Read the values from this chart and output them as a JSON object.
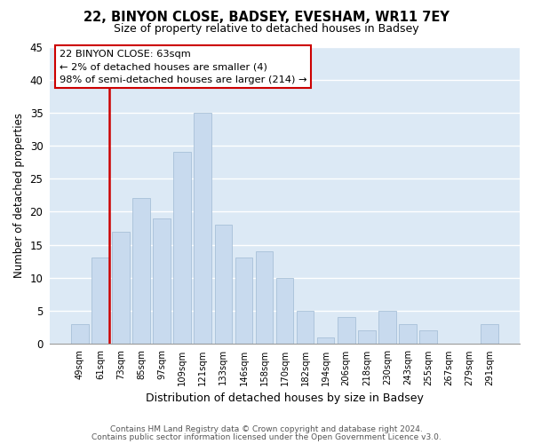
{
  "title": "22, BINYON CLOSE, BADSEY, EVESHAM, WR11 7EY",
  "subtitle": "Size of property relative to detached houses in Badsey",
  "xlabel": "Distribution of detached houses by size in Badsey",
  "ylabel": "Number of detached properties",
  "bar_color": "#c8daee",
  "bar_edge_color": "#a8c0d8",
  "vline_color": "#cc0000",
  "categories": [
    "49sqm",
    "61sqm",
    "73sqm",
    "85sqm",
    "97sqm",
    "109sqm",
    "121sqm",
    "133sqm",
    "146sqm",
    "158sqm",
    "170sqm",
    "182sqm",
    "194sqm",
    "206sqm",
    "218sqm",
    "230sqm",
    "243sqm",
    "255sqm",
    "267sqm",
    "279sqm",
    "291sqm"
  ],
  "values": [
    3,
    13,
    17,
    22,
    19,
    29,
    35,
    18,
    13,
    14,
    10,
    5,
    1,
    4,
    2,
    5,
    3,
    2,
    0,
    0,
    3
  ],
  "ylim": [
    0,
    45
  ],
  "yticks": [
    0,
    5,
    10,
    15,
    20,
    25,
    30,
    35,
    40,
    45
  ],
  "annotation_lines": [
    "22 BINYON CLOSE: 63sqm",
    "← 2% of detached houses are smaller (4)",
    "98% of semi-detached houses are larger (214) →"
  ],
  "footnote1": "Contains HM Land Registry data © Crown copyright and database right 2024.",
  "footnote2": "Contains public sector information licensed under the Open Government Licence v3.0.",
  "grid_color": "#ffffff",
  "bg_color": "#dce9f5",
  "vline_bar_index": 1
}
